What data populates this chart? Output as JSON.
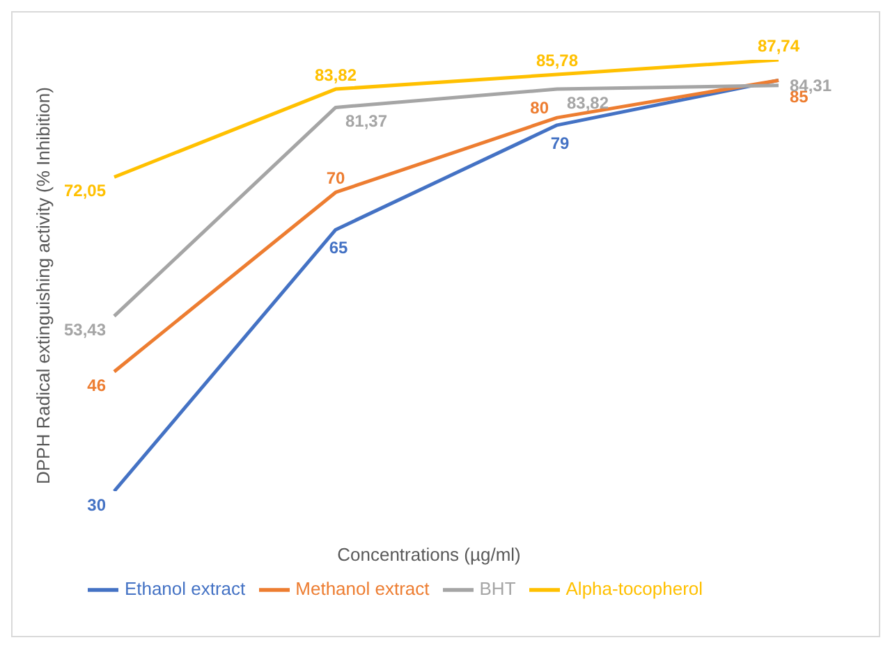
{
  "chart_data": {
    "type": "line",
    "xlabel": "Concentrations (µg/ml)",
    "ylabel": "DPPH Radical extinguishing activity (% Inhibition)",
    "categories": [
      null,
      null,
      null,
      null
    ],
    "series": [
      {
        "name": "Ethanol extract",
        "color": "#4472c4",
        "values": [
          30,
          65,
          79,
          85
        ],
        "value_labels": [
          "30",
          "65",
          "79",
          null
        ]
      },
      {
        "name": "Methanol extract",
        "color": "#ed7d31",
        "values": [
          46,
          70,
          80,
          85
        ],
        "value_labels": [
          "46",
          "70",
          "80",
          "85"
        ]
      },
      {
        "name": "BHT",
        "color": "#a5a5a5",
        "values": [
          53.43,
          81.37,
          83.82,
          84.31
        ],
        "value_labels": [
          "53,43",
          "81,37",
          "83,82",
          "84,31"
        ]
      },
      {
        "name": "Alpha-tocopherol",
        "color": "#ffc000",
        "values": [
          72.05,
          83.82,
          85.78,
          87.74
        ],
        "value_labels": [
          "72,05",
          "83,82",
          "85,78",
          "87,74"
        ]
      }
    ],
    "grid": false,
    "legend": "bottom",
    "marker": "none",
    "line_style": "solid"
  }
}
